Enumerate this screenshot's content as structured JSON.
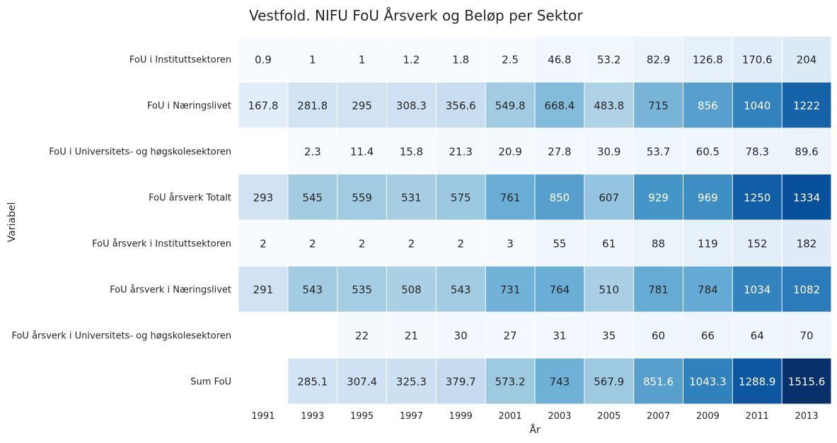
{
  "chart_data": {
    "type": "heatmap",
    "title": "Vestfold. NIFU FoU Årsverk og Beløp per Sektor",
    "xlabel": "År",
    "ylabel": "Variabel",
    "colormap": "Blues",
    "color_range": [
      0,
      1515.6
    ],
    "x": [
      "1991",
      "1993",
      "1995",
      "1997",
      "1999",
      "2001",
      "2003",
      "2005",
      "2007",
      "2009",
      "2011",
      "2013"
    ],
    "rows": [
      {
        "label": "FoU i Instituttsektoren",
        "values": [
          "0.9",
          "1",
          "1",
          "1.2",
          "1.8",
          "2.5",
          "46.8",
          "53.2",
          "82.9",
          "126.8",
          "170.6",
          "204"
        ]
      },
      {
        "label": "FoU i Næringslivet",
        "values": [
          "167.8",
          "281.8",
          "295",
          "308.3",
          "356.6",
          "549.8",
          "668.4",
          "483.8",
          "715",
          "856",
          "1040",
          "1222"
        ]
      },
      {
        "label": "FoU i Universitets- og høgskolesektoren",
        "values": [
          null,
          "2.3",
          "11.4",
          "15.8",
          "21.3",
          "20.9",
          "27.8",
          "30.9",
          "53.7",
          "60.5",
          "78.3",
          "89.6"
        ]
      },
      {
        "label": "FoU årsverk Totalt",
        "values": [
          "293",
          "545",
          "559",
          "531",
          "575",
          "761",
          "850",
          "607",
          "929",
          "969",
          "1250",
          "1334"
        ]
      },
      {
        "label": "FoU årsverk i Instituttsektoren",
        "values": [
          "2",
          "2",
          "2",
          "2",
          "2",
          "3",
          "55",
          "61",
          "88",
          "119",
          "152",
          "182"
        ]
      },
      {
        "label": "FoU årsverk i Næringslivet",
        "values": [
          "291",
          "543",
          "535",
          "508",
          "543",
          "731",
          "764",
          "510",
          "781",
          "784",
          "1034",
          "1082"
        ]
      },
      {
        "label": "FoU årsverk i Universitets- og høgskolesektoren",
        "values": [
          null,
          null,
          "22",
          "21",
          "30",
          "27",
          "31",
          "35",
          "60",
          "66",
          "64",
          "70"
        ]
      },
      {
        "label": "Sum FoU",
        "values": [
          null,
          "285.1",
          "307.4",
          "325.3",
          "379.7",
          "573.2",
          "743",
          "567.9",
          "851.6",
          "1043.3",
          "1288.9",
          "1515.6"
        ]
      }
    ]
  }
}
